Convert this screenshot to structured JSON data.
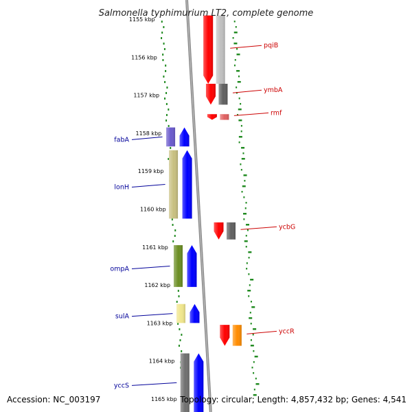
{
  "title": "Salmonella typhimurium LT2, complete genome",
  "accession": "Accession: NC_003197",
  "topology": "Topology: circular; Length: 4,857,432 bp; Genes: 4,541",
  "ticks": [
    {
      "label": "1155 kbp",
      "kbp": 1155
    },
    {
      "label": "1156 kbp",
      "kbp": 1156
    },
    {
      "label": "1157 kbp",
      "kbp": 1157
    },
    {
      "label": "1158 kbp",
      "kbp": 1158
    },
    {
      "label": "1159 kbp",
      "kbp": 1159
    },
    {
      "label": "1160 kbp",
      "kbp": 1160
    },
    {
      "label": "1161 kbp",
      "kbp": 1161
    },
    {
      "label": "1162 kbp",
      "kbp": 1162
    },
    {
      "label": "1163 kbp",
      "kbp": 1163
    },
    {
      "label": "1164 kbp",
      "kbp": 1164
    },
    {
      "label": "1165 kbp",
      "kbp": 1165
    }
  ],
  "genes_right": [
    {
      "name": "pqiB",
      "start_kbp": 1154.9,
      "end_kbp": 1156.7,
      "color": "#ff0000",
      "cog_color": "#c0c0c0"
    },
    {
      "name": "ymbA",
      "start_kbp": 1156.7,
      "end_kbp": 1157.25,
      "color": "#ff0000",
      "cog_color": "#606060"
    },
    {
      "name": "rmf",
      "start_kbp": 1157.5,
      "end_kbp": 1157.65,
      "color": "#ff0000",
      "cog_color": "#e06060"
    },
    {
      "name": "ycbG",
      "start_kbp": 1160.35,
      "end_kbp": 1160.8,
      "color": "#ff0000",
      "cog_color": "#606060"
    },
    {
      "name": "yccR",
      "start_kbp": 1163.05,
      "end_kbp": 1163.6,
      "color": "#ff0000",
      "cog_color": "#ff8c00"
    }
  ],
  "genes_left": [
    {
      "name": "fabA",
      "start_kbp": 1157.85,
      "end_kbp": 1158.35,
      "color": "#0000ff",
      "cog_color": "#6a5acd"
    },
    {
      "name": "lonH",
      "start_kbp": 1158.45,
      "end_kbp": 1160.25,
      "color": "#0000ff",
      "cog_color": "#c8c080"
    },
    {
      "name": "ompA",
      "start_kbp": 1160.95,
      "end_kbp": 1162.05,
      "color": "#0000ff",
      "cog_color": "#6b8e23"
    },
    {
      "name": "sulA",
      "start_kbp": 1162.5,
      "end_kbp": 1163.0,
      "color": "#0000ff",
      "cog_color": "#f0e68c"
    },
    {
      "name": "yccS",
      "start_kbp": 1163.8,
      "end_kbp": 1165.5,
      "color": "#0000ff",
      "cog_color": "#707070"
    }
  ],
  "colors": {
    "forward_label": "#cc0000",
    "reverse_label": "#000099",
    "gc_dots": "#228b22",
    "backbone": "#909090"
  }
}
